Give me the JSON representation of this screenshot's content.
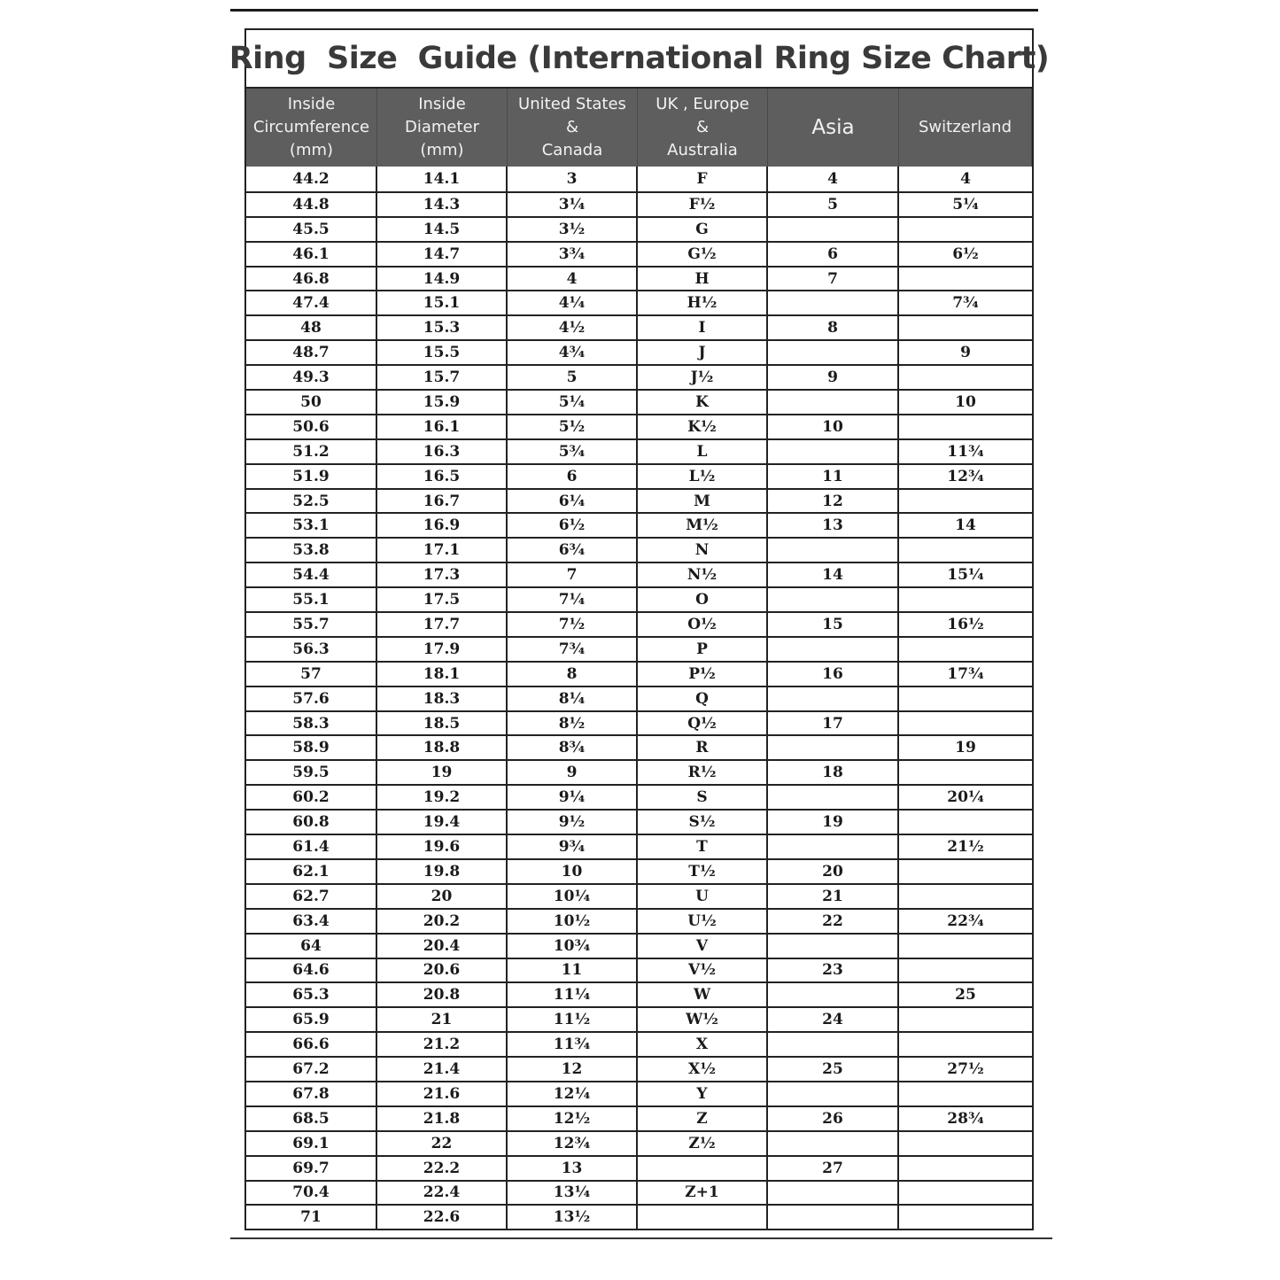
{
  "title": "Ring  Size  Guide (International Ring Size Chart)",
  "columns": [
    "Inside\nCircumference\n(mm)",
    "Inside\nDiameter\n(mm)",
    "United States\n&\nCanada",
    "UK , Europe\n&\nAustralia",
    "Asia",
    "Switzerland"
  ],
  "rows": [
    [
      "44.2",
      "14.1",
      "3",
      "F",
      "4",
      "4"
    ],
    [
      "44.8",
      "14.3",
      "3¼",
      "F½",
      "5",
      "5¼"
    ],
    [
      "45.5",
      "14.5",
      "3½",
      "G",
      "",
      ""
    ],
    [
      "46.1",
      "14.7",
      "3¾",
      "G½",
      "6",
      "6½"
    ],
    [
      "46.8",
      "14.9",
      "4",
      "H",
      "7",
      ""
    ],
    [
      "47.4",
      "15.1",
      "4¼",
      "H½",
      "",
      "7¾"
    ],
    [
      "48",
      "15.3",
      "4½",
      "I",
      "8",
      ""
    ],
    [
      "48.7",
      "15.5",
      "4¾",
      "J",
      "",
      "9"
    ],
    [
      "49.3",
      "15.7",
      "5",
      "J½",
      "9",
      ""
    ],
    [
      "50",
      "15.9",
      "5¼",
      "K",
      "",
      "10"
    ],
    [
      "50.6",
      "16.1",
      "5½",
      "K½",
      "10",
      ""
    ],
    [
      "51.2",
      "16.3",
      "5¾",
      "L",
      "",
      "11¾"
    ],
    [
      "51.9",
      "16.5",
      "6",
      "L½",
      "11",
      "12¾"
    ],
    [
      "52.5",
      "16.7",
      "6¼",
      "M",
      "12",
      ""
    ],
    [
      "53.1",
      "16.9",
      "6½",
      "M½",
      "13",
      "14"
    ],
    [
      "53.8",
      "17.1",
      "6¾",
      "N",
      "",
      ""
    ],
    [
      "54.4",
      "17.3",
      "7",
      "N½",
      "14",
      "15¼"
    ],
    [
      "55.1",
      "17.5",
      "7¼",
      "O",
      "",
      ""
    ],
    [
      "55.7",
      "17.7",
      "7½",
      "O½",
      "15",
      "16½"
    ],
    [
      "56.3",
      "17.9",
      "7¾",
      "P",
      "",
      ""
    ],
    [
      "57",
      "18.1",
      "8",
      "P½",
      "16",
      "17¾"
    ],
    [
      "57.6",
      "18.3",
      "8¼",
      "Q",
      "",
      ""
    ],
    [
      "58.3",
      "18.5",
      "8½",
      "Q½",
      "17",
      ""
    ],
    [
      "58.9",
      "18.8",
      "8¾",
      "R",
      "",
      "19"
    ],
    [
      "59.5",
      "19",
      "9",
      "R½",
      "18",
      ""
    ],
    [
      "60.2",
      "19.2",
      "9¼",
      "S",
      "",
      "20¼"
    ],
    [
      "60.8",
      "19.4",
      "9½",
      "S½",
      "19",
      ""
    ],
    [
      "61.4",
      "19.6",
      "9¾",
      "T",
      "",
      "21½"
    ],
    [
      "62.1",
      "19.8",
      "10",
      "T½",
      "20",
      ""
    ],
    [
      "62.7",
      "20",
      "10¼",
      "U",
      "21",
      ""
    ],
    [
      "63.4",
      "20.2",
      "10½",
      "U½",
      "22",
      "22¾"
    ],
    [
      "64",
      "20.4",
      "10¾",
      "V",
      "",
      ""
    ],
    [
      "64.6",
      "20.6",
      "11",
      "V½",
      "23",
      ""
    ],
    [
      "65.3",
      "20.8",
      "11¼",
      "W",
      "",
      "25"
    ],
    [
      "65.9",
      "21",
      "11½",
      "W½",
      "24",
      ""
    ],
    [
      "66.6",
      "21.2",
      "11¾",
      "X",
      "",
      ""
    ],
    [
      "67.2",
      "21.4",
      "12",
      "X½",
      "25",
      "27½"
    ],
    [
      "67.8",
      "21.6",
      "12¼",
      "Y",
      "",
      ""
    ],
    [
      "68.5",
      "21.8",
      "12½",
      "Z",
      "26",
      "28¾"
    ],
    [
      "69.1",
      "22",
      "12¾",
      "Z½",
      "",
      ""
    ],
    [
      "69.7",
      "22.2",
      "13",
      "",
      "27",
      ""
    ],
    [
      "70.4",
      "22.4",
      "13¼",
      "Z+1",
      "",
      ""
    ],
    [
      "71",
      "22.6",
      "13½",
      "",
      "",
      ""
    ]
  ]
}
